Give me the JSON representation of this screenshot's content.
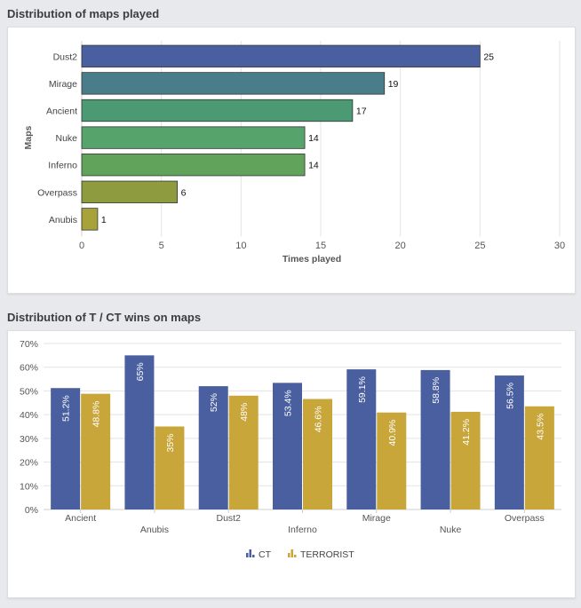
{
  "sections": [
    {
      "title": "Distribution of maps played"
    },
    {
      "title": "Distribution of T / CT wins on maps"
    }
  ],
  "chart_data": [
    {
      "type": "bar",
      "orientation": "horizontal",
      "title": "Distribution of maps played",
      "categories": [
        "Dust2",
        "Mirage",
        "Ancient",
        "Nuke",
        "Inferno",
        "Overpass",
        "Anubis"
      ],
      "values": [
        25,
        19,
        17,
        14,
        14,
        6,
        1
      ],
      "value_labels": [
        "25",
        "19",
        "17",
        "14",
        "14",
        "6",
        "1"
      ],
      "colors": [
        "#4a5fa0",
        "#4a7d8a",
        "#4c9a73",
        "#56a46b",
        "#62a35b",
        "#8e9c3f",
        "#a8a23a"
      ],
      "xlabel": "Times played",
      "ylabel": "Maps",
      "xlim": [
        0,
        30
      ],
      "xticks": [
        0,
        5,
        10,
        15,
        20,
        25,
        30
      ],
      "xtick_labels": [
        "0",
        "5",
        "10",
        "15",
        "20",
        "25",
        "30"
      ],
      "grid": true
    },
    {
      "type": "bar",
      "orientation": "vertical",
      "title": "Distribution of T / CT wins on maps",
      "categories": [
        "Ancient",
        "Anubis",
        "Dust2",
        "Inferno",
        "Mirage",
        "Nuke",
        "Overpass"
      ],
      "series": [
        {
          "name": "CT",
          "color": "#4a5fa0",
          "values": [
            51.2,
            65,
            52,
            53.4,
            59.1,
            58.8,
            56.5
          ],
          "labels": [
            "51.2%",
            "65%",
            "52%",
            "53.4%",
            "59.1%",
            "58.8%",
            "56.5%"
          ]
        },
        {
          "name": "TERRORIST",
          "color": "#c9a63a",
          "values": [
            48.8,
            35,
            48,
            46.6,
            40.9,
            41.2,
            43.5
          ],
          "labels": [
            "48.8%",
            "35%",
            "48%",
            "46.6%",
            "40.9%",
            "41.2%",
            "43.5%"
          ]
        }
      ],
      "ylim": [
        0,
        70
      ],
      "yticks": [
        0,
        10,
        20,
        30,
        40,
        50,
        60,
        70
      ],
      "ytick_labels": [
        "0%",
        "10%",
        "20%",
        "30%",
        "40%",
        "50%",
        "60%",
        "70%"
      ],
      "legend": "bottom-center",
      "legend_icon": "bar-chart-icon",
      "grid": true
    }
  ]
}
